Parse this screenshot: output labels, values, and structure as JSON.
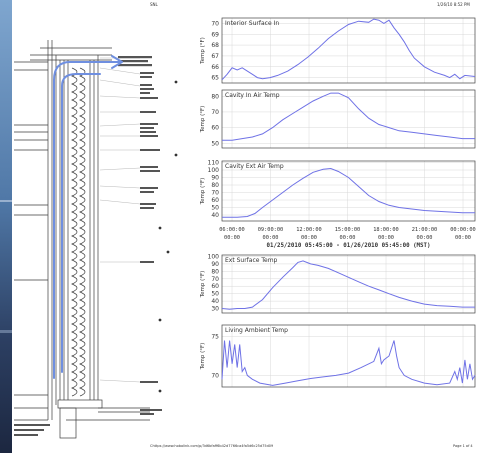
{
  "header": {
    "middle": "SNL",
    "right": "1/26/10 8:52 PM"
  },
  "footer": {
    "url": "Chttps://www.hobolink.com/p/3d6bfaff6b42d7766ca4fa5d6c25d75d09",
    "page": "Page 1 of 4"
  },
  "colors": {
    "line": "#6f72e6",
    "grid": "#d8d8d8",
    "arrow": "#6f8fe0",
    "wall_line": "#3d3d3d",
    "photo_blue": "#5a82b0",
    "photo_dark": "#23324d"
  },
  "time_axis": {
    "ticks": [
      "06:00:00",
      "09:00:00",
      "12:00:00",
      "15:00:00",
      "18:00:00",
      "21:00:00",
      "00:00:00"
    ],
    "range_label": "01/25/2010 05:45:00 - 01/26/2010 05:45:00 (MST)"
  },
  "chart_data": [
    {
      "type": "line",
      "title": "Interior Surface In",
      "ylabel": "Temp (°F)",
      "ylim": [
        64.5,
        70.5
      ],
      "yticks": [
        65,
        66,
        67,
        68,
        69,
        70
      ],
      "x": [
        0,
        0.02,
        0.04,
        0.06,
        0.08,
        0.1,
        0.12,
        0.14,
        0.16,
        0.19,
        0.22,
        0.26,
        0.3,
        0.34,
        0.38,
        0.42,
        0.46,
        0.5,
        0.54,
        0.58,
        0.6,
        0.62,
        0.64,
        0.66,
        0.68,
        0.7,
        0.72,
        0.74,
        0.76,
        0.8,
        0.84,
        0.88,
        0.9,
        0.92,
        0.94,
        0.96,
        1.0
      ],
      "values": [
        64.8,
        65.3,
        65.9,
        65.7,
        65.9,
        65.6,
        65.3,
        65.0,
        64.9,
        65.0,
        65.2,
        65.6,
        66.2,
        66.9,
        67.7,
        68.6,
        69.3,
        69.9,
        70.2,
        70.1,
        70.4,
        70.3,
        70.0,
        70.3,
        69.6,
        69.0,
        68.3,
        67.5,
        66.8,
        66.0,
        65.5,
        65.2,
        65.0,
        65.3,
        64.9,
        65.2,
        65.1
      ]
    },
    {
      "type": "line",
      "title": "Cavity In Air Temp",
      "ylabel": "Temp (°F)",
      "ylim": [
        47,
        84
      ],
      "yticks": [
        50,
        60,
        70,
        80
      ],
      "x": [
        0,
        0.04,
        0.08,
        0.12,
        0.16,
        0.2,
        0.24,
        0.28,
        0.32,
        0.36,
        0.4,
        0.43,
        0.46,
        0.5,
        0.54,
        0.58,
        0.62,
        0.66,
        0.7,
        0.75,
        0.8,
        0.85,
        0.9,
        0.95,
        1.0
      ],
      "values": [
        52,
        52,
        53,
        54,
        56,
        60,
        65,
        69,
        73,
        77,
        80,
        82,
        82,
        79,
        72,
        66,
        62,
        60,
        58,
        57,
        56,
        55,
        54,
        53,
        53
      ]
    },
    {
      "type": "line",
      "title": "Cavity Ext Air Temp",
      "ylabel": "Temp (°F)",
      "ylim": [
        32,
        112
      ],
      "yticks": [
        40,
        50,
        60,
        70,
        80,
        90,
        100,
        110
      ],
      "x": [
        0,
        0.03,
        0.06,
        0.1,
        0.13,
        0.16,
        0.2,
        0.24,
        0.28,
        0.32,
        0.36,
        0.4,
        0.43,
        0.46,
        0.5,
        0.54,
        0.58,
        0.62,
        0.66,
        0.7,
        0.75,
        0.8,
        0.85,
        0.9,
        0.95,
        1.0
      ],
      "values": [
        37,
        37,
        37,
        38,
        42,
        50,
        60,
        70,
        80,
        89,
        97,
        101,
        102,
        98,
        90,
        78,
        66,
        58,
        53,
        50,
        48,
        46,
        45,
        44,
        43,
        43
      ]
    },
    {
      "type": "line",
      "title": "Ext Surface Temp",
      "ylabel": "Temp (°F)",
      "ylim": [
        24,
        102
      ],
      "yticks": [
        30,
        40,
        50,
        60,
        70,
        80,
        90,
        100
      ],
      "x": [
        0,
        0.03,
        0.06,
        0.09,
        0.12,
        0.16,
        0.2,
        0.24,
        0.28,
        0.3,
        0.32,
        0.35,
        0.38,
        0.42,
        0.46,
        0.5,
        0.54,
        0.58,
        0.62,
        0.66,
        0.7,
        0.75,
        0.8,
        0.85,
        0.9,
        0.95,
        1.0
      ],
      "values": [
        30,
        29,
        30,
        30,
        32,
        42,
        58,
        72,
        85,
        92,
        94,
        90,
        88,
        84,
        78,
        72,
        66,
        60,
        55,
        50,
        45,
        40,
        36,
        34,
        33,
        32,
        32
      ]
    },
    {
      "type": "line",
      "title": "Living Ambient Temp",
      "ylabel": "Temp (°F)",
      "ylim": [
        68.5,
        76.5
      ],
      "yticks": [
        70,
        75
      ],
      "x": [
        0,
        0.01,
        0.02,
        0.03,
        0.04,
        0.05,
        0.06,
        0.07,
        0.08,
        0.09,
        0.1,
        0.12,
        0.15,
        0.2,
        0.25,
        0.3,
        0.35,
        0.4,
        0.45,
        0.5,
        0.55,
        0.6,
        0.62,
        0.63,
        0.64,
        0.66,
        0.68,
        0.69,
        0.7,
        0.72,
        0.75,
        0.8,
        0.85,
        0.9,
        0.92,
        0.93,
        0.94,
        0.95,
        0.96,
        0.97,
        0.98,
        0.99,
        1.0
      ],
      "values": [
        69.5,
        74.5,
        71.0,
        74.5,
        71.5,
        74.0,
        71.0,
        74.0,
        70.5,
        71.0,
        70.0,
        69.5,
        69.0,
        68.7,
        69.0,
        69.3,
        69.6,
        69.8,
        70.0,
        70.3,
        71.0,
        71.8,
        73.5,
        71.5,
        72.0,
        72.5,
        74.5,
        72.5,
        71.0,
        70.0,
        69.5,
        69.0,
        68.8,
        69.0,
        70.5,
        69.5,
        71.0,
        69.0,
        72.0,
        69.5,
        71.5,
        69.5,
        70.0
      ]
    }
  ]
}
